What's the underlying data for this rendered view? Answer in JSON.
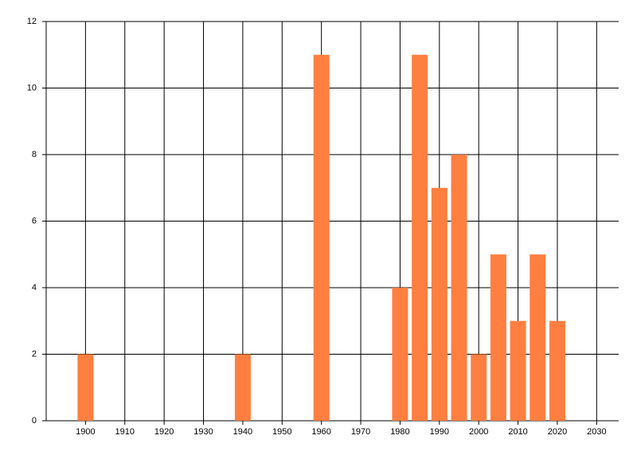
{
  "chart_data": {
    "type": "bar",
    "x": [
      1900,
      1940,
      1960,
      1980,
      1985,
      1990,
      1995,
      2000,
      2005,
      2010,
      2015,
      2020
    ],
    "values": [
      2,
      2,
      11,
      4,
      11,
      7,
      8,
      2,
      5,
      3,
      5,
      3
    ],
    "color": "#ff7f41",
    "xlim": [
      1890,
      2035.6
    ],
    "xticks": [
      1900,
      1910,
      1920,
      1930,
      1940,
      1950,
      1960,
      1970,
      1980,
      1990,
      2000,
      2010,
      2020,
      2030
    ],
    "ylim": [
      0,
      12
    ],
    "yticks": [
      0,
      2,
      4,
      6,
      8,
      10,
      12
    ],
    "grid": true
  }
}
